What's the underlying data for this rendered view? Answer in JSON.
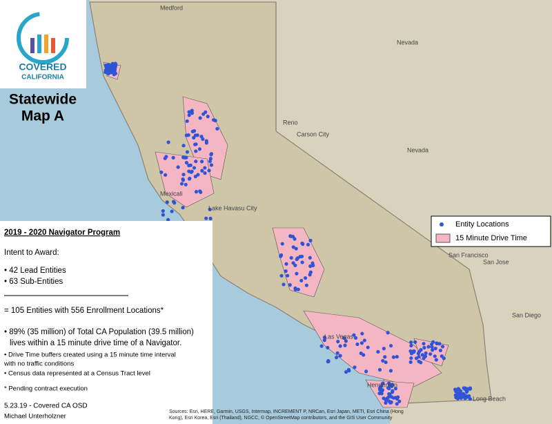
{
  "logo": {
    "line1": "COVERED",
    "line2": "CALIFORNIA"
  },
  "title": {
    "line1": "Statewide",
    "line2": "Map A"
  },
  "info": {
    "heading": "2019 - 2020 Navigator Program",
    "intent": "Intent to Award:",
    "items": [
      "• 42 Lead Entities",
      "• 63 Sub-Entities"
    ],
    "total": "= 105 Entities with 556 Enrollment Locations*",
    "population": [
      "• 89% (35 million) of Total CA Population (39.5 million)",
      "lives within a 15 minute drive time of a Navigator."
    ],
    "notes": [
      "• Drive Time buffers created using a 15 minute time interval",
      "with no traffic conditions",
      "• Census data represented at a Census Tract level"
    ],
    "pending": "* Pending contract execution",
    "date": "5.23.19 - Covered CA OSD",
    "author": "Michael Unterholzner"
  },
  "legend": {
    "items": [
      "Entity Locations",
      "15 Minute Drive Time"
    ]
  },
  "map_labels": [
    "Medford",
    "Reno",
    "Carson City",
    "Nevada",
    "Nevada",
    "San Francisco",
    "San Jose",
    "Las Vegas",
    "Henderson",
    "Long Beach",
    "San Diego",
    "Mexicali",
    "Lake Havasu City"
  ],
  "sources": [
    "Sources: Esri, HERE, Garmin, USGS, Intermap, INCREMENT P, NRCan, Esri Japan, METI, Esri China (Hong",
    "Kong), Esri Korea, Esri (Thailand), NGCC, © OpenStreetMap contributors, and the GIS User Community"
  ]
}
